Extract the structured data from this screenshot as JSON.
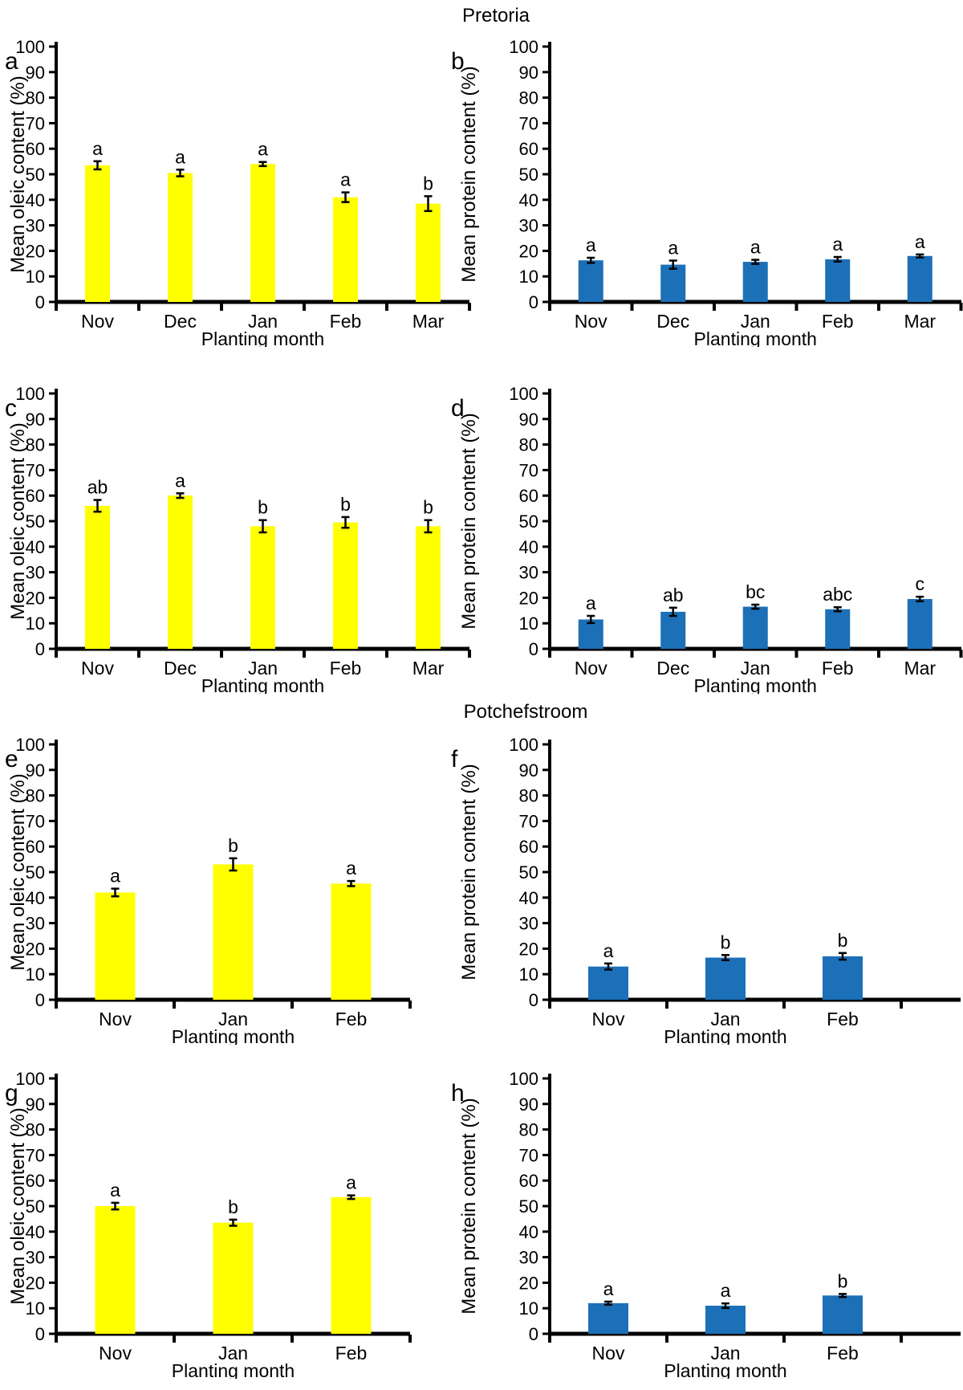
{
  "titles": {
    "top": "Pretoria",
    "middle": "Potchefstroom"
  },
  "style": {
    "oleic_bar_color": "#FFFF00",
    "protein_bar_color": "#1C70B8",
    "axis_color": "#000000",
    "text_color": "#000000"
  },
  "chart_data": [
    {
      "panel_label": "a",
      "type": "bar",
      "location": "Pretoria",
      "ylabel": "Mean oleic content (%)",
      "xlabel": "Planting month",
      "ylim": [
        0,
        100
      ],
      "ytick_step": 10,
      "grid": false,
      "legend": "none",
      "bar_color": "#FFFF00",
      "categories": [
        "Nov",
        "Dec",
        "Jan",
        "Feb",
        "Mar"
      ],
      "values": [
        53.5,
        50.5,
        54,
        41,
        38.5
      ],
      "errors": [
        1.6,
        1.3,
        0.8,
        1.9,
        2.9
      ],
      "sig_letters": [
        "a",
        "a",
        "a",
        "a",
        "b"
      ]
    },
    {
      "panel_label": "b",
      "type": "bar",
      "location": "Pretoria",
      "ylabel": "Mean protein content (%)",
      "xlabel": "Planting month",
      "ylim": [
        0,
        100
      ],
      "ytick_step": 10,
      "grid": false,
      "legend": "none",
      "bar_color": "#1C70B8",
      "categories": [
        "Nov",
        "Dec",
        "Jan",
        "Feb",
        "Mar"
      ],
      "values": [
        16.3,
        14.6,
        15.7,
        16.7,
        18
      ],
      "errors": [
        1.0,
        1.6,
        0.8,
        0.9,
        0.6
      ],
      "sig_letters": [
        "a",
        "a",
        "a",
        "a",
        "a"
      ]
    },
    {
      "panel_label": "c",
      "type": "bar",
      "location": "Pretoria",
      "ylabel": "Mean oleic content (%)",
      "xlabel": "Planting month",
      "ylim": [
        0,
        100
      ],
      "ytick_step": 10,
      "grid": false,
      "legend": "none",
      "bar_color": "#FFFF00",
      "categories": [
        "Nov",
        "Dec",
        "Jan",
        "Feb",
        "Mar"
      ],
      "values": [
        56,
        60,
        48,
        49.5,
        48
      ],
      "errors": [
        2.3,
        0.9,
        2.4,
        2.1,
        2.4
      ],
      "sig_letters": [
        "ab",
        "a",
        "b",
        "b",
        "b"
      ]
    },
    {
      "panel_label": "d",
      "type": "bar",
      "location": "Pretoria",
      "ylabel": "Mean protein content (%)",
      "xlabel": "Planting month",
      "ylim": [
        0,
        100
      ],
      "ytick_step": 10,
      "grid": false,
      "legend": "none",
      "bar_color": "#1C70B8",
      "categories": [
        "Nov",
        "Dec",
        "Jan",
        "Feb",
        "Mar"
      ],
      "values": [
        11.5,
        14.5,
        16.5,
        15.5,
        19.5
      ],
      "errors": [
        1.4,
        1.6,
        0.8,
        0.8,
        0.9
      ],
      "sig_letters": [
        "a",
        "ab",
        "bc",
        "abc",
        "c"
      ]
    },
    {
      "panel_label": "e",
      "type": "bar",
      "location": "Potchefstroom",
      "ylabel": "Mean oleic content (%)",
      "xlabel": "Planting month",
      "ylim": [
        0,
        100
      ],
      "ytick_step": 10,
      "grid": false,
      "legend": "none",
      "bar_color": "#FFFF00",
      "categories": [
        "Nov",
        "Jan",
        "Feb"
      ],
      "values": [
        42,
        53,
        45.5
      ],
      "errors": [
        1.5,
        2.4,
        1.0
      ],
      "sig_letters": [
        "a",
        "b",
        "a"
      ]
    },
    {
      "panel_label": "f",
      "type": "bar",
      "location": "Potchefstroom",
      "ylabel": "Mean protein content (%)",
      "xlabel": "Planting month",
      "ylim": [
        0,
        100
      ],
      "ytick_step": 10,
      "grid": false,
      "legend": "none",
      "bar_color": "#1C70B8",
      "categories": [
        "Nov",
        "Jan",
        "Feb"
      ],
      "values": [
        13,
        16.5,
        17
      ],
      "errors": [
        1.2,
        1.0,
        1.3
      ],
      "sig_letters": [
        "a",
        "b",
        "b"
      ]
    },
    {
      "panel_label": "g",
      "type": "bar",
      "location": "Potchefstroom",
      "ylabel": "Mean oleic content (%)",
      "xlabel": "Planting month",
      "ylim": [
        0,
        100
      ],
      "ytick_step": 10,
      "grid": false,
      "legend": "none",
      "bar_color": "#FFFF00",
      "categories": [
        "Nov",
        "Jan",
        "Feb"
      ],
      "values": [
        50,
        43.5,
        53.5
      ],
      "errors": [
        1.3,
        1.2,
        0.7
      ],
      "sig_letters": [
        "a",
        "b",
        "a"
      ]
    },
    {
      "panel_label": "h",
      "type": "bar",
      "location": "Potchefstroom",
      "ylabel": "Mean protein content (%)",
      "xlabel": "Planting month",
      "ylim": [
        0,
        100
      ],
      "ytick_step": 10,
      "grid": false,
      "legend": "none",
      "bar_color": "#1C70B8",
      "categories": [
        "Nov",
        "Jan",
        "Feb"
      ],
      "values": [
        12,
        11,
        15
      ],
      "errors": [
        0.6,
        0.9,
        0.6
      ],
      "sig_letters": [
        "a",
        "a",
        "b"
      ]
    }
  ]
}
